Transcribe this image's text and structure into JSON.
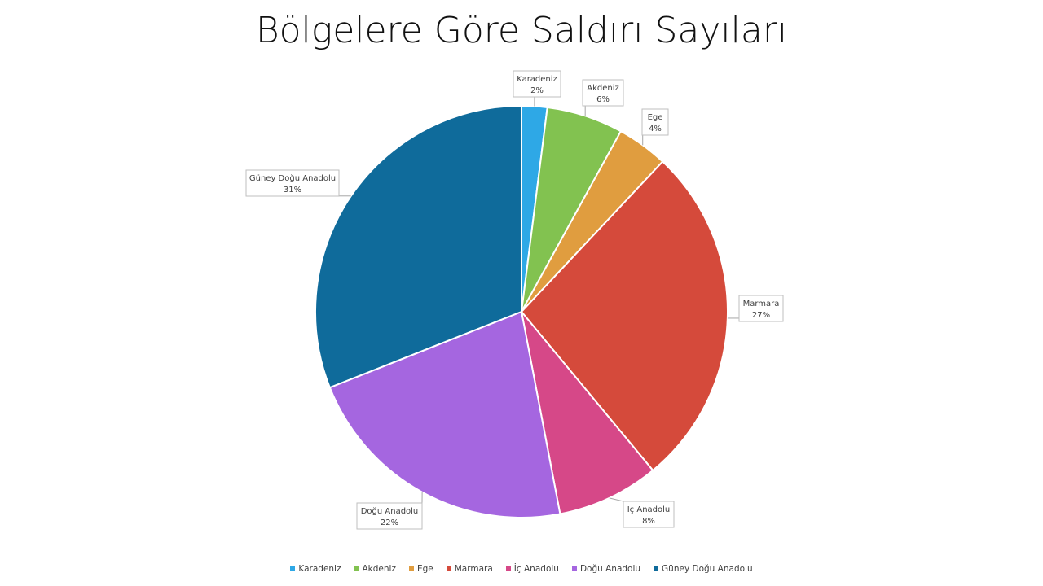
{
  "chart_data": {
    "type": "pie",
    "title": "Bölgelere Göre Saldırı Sayıları",
    "categories": [
      "Karadeniz",
      "Akdeniz",
      "Ege",
      "Marmara",
      "İç Anadolu",
      "Doğu Anadolu",
      "Güney Doğu Anadolu"
    ],
    "values": [
      2,
      6,
      4,
      27,
      8,
      22,
      31
    ],
    "data_labels": [
      "2%",
      "6%",
      "4%",
      "27%",
      "8%",
      "22%",
      "31%"
    ],
    "colors": [
      "#2ea8e6",
      "#82c250",
      "#e09d3f",
      "#d54a3b",
      "#d64888",
      "#a566e0",
      "#0f6b9b"
    ],
    "start_angle": "12 o'clock, clockwise",
    "legend_position": "bottom"
  }
}
